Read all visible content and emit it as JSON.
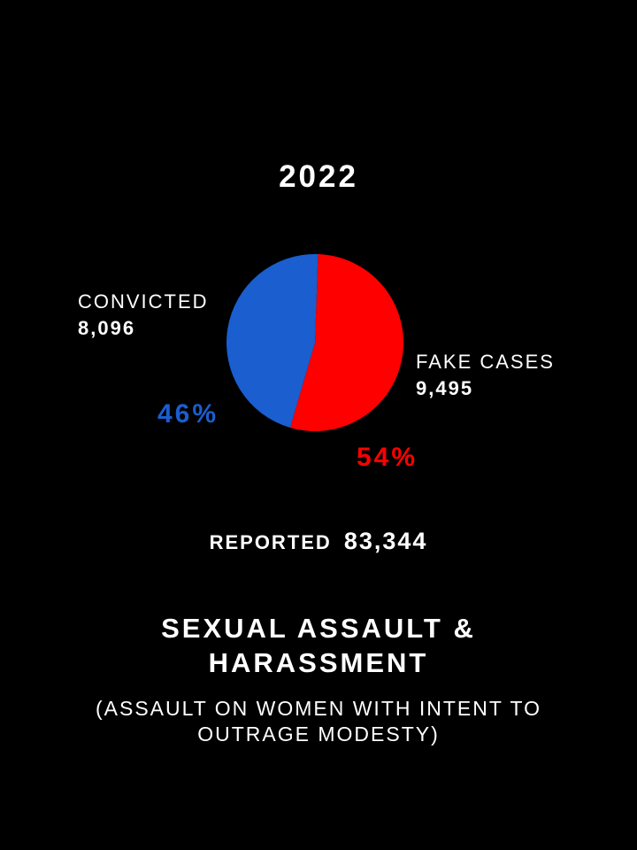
{
  "colors": {
    "background": "#000000",
    "text": "#ffffff",
    "convicted": "#1a5ecf",
    "fake": "#ff0000"
  },
  "chart_data": {
    "type": "pie",
    "title": "2022",
    "slices": [
      {
        "label": "CONVICTED",
        "value": 8096,
        "value_text": "8,096",
        "percent_text": "46%",
        "color": "#1a5ecf"
      },
      {
        "label": "FAKE CASES",
        "value": 9495,
        "value_text": "9,495",
        "percent_text": "54%",
        "color": "#ff0000"
      }
    ],
    "reported": {
      "label": "REPORTED",
      "value_text": "83,344"
    }
  },
  "heading": {
    "title": "SEXUAL ASSAULT & HARASSMENT",
    "subtitle": "(ASSAULT ON WOMEN WITH INTENT TO OUTRAGE MODESTY)"
  }
}
